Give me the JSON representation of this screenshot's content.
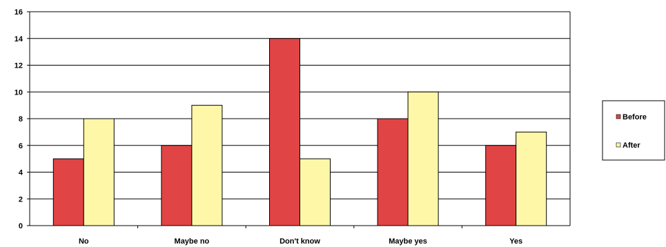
{
  "chart_data": {
    "type": "bar",
    "categories": [
      "No",
      "Maybe no",
      "Don't know",
      "Maybe yes",
      "Yes"
    ],
    "series": [
      {
        "name": "Before",
        "values": [
          5,
          6,
          14,
          8,
          6
        ],
        "color": "#e04444"
      },
      {
        "name": "After",
        "values": [
          8,
          9,
          5,
          10,
          7
        ],
        "color": "#fff7a8"
      }
    ],
    "ylim": [
      0,
      16
    ],
    "yticks": [
      0,
      2,
      4,
      6,
      8,
      10,
      12,
      14,
      16
    ],
    "grid": true,
    "legend": "right"
  }
}
